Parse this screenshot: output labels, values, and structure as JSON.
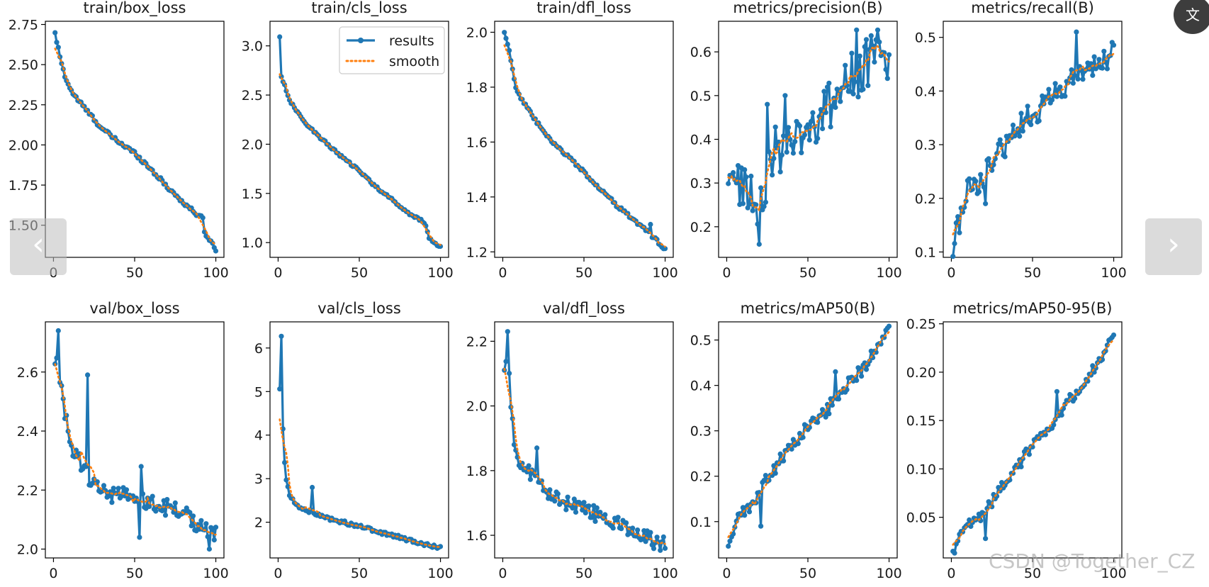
{
  "nav": {
    "prev_label": "‹",
    "next_label": "›",
    "translate_label": "文"
  },
  "watermark": "CSDN @Together_CZ",
  "colors": {
    "results": "#1f77b4",
    "smooth": "#ff7f0e"
  },
  "chart_data": [
    {
      "type": "line",
      "title": "train/box_loss",
      "xlim": [
        -5,
        105
      ],
      "ylim": [
        1.3,
        2.77
      ],
      "xticks": [
        0,
        50,
        100
      ],
      "yticks": [
        1.5,
        1.75,
        2.0,
        2.25,
        2.5,
        2.75
      ],
      "ytick_labels": [
        "1.50",
        "1.75",
        "2.00",
        "2.25",
        "2.50",
        "2.75"
      ],
      "anchors": [
        [
          1,
          2.69
        ],
        [
          3,
          2.6
        ],
        [
          5,
          2.5
        ],
        [
          8,
          2.4
        ],
        [
          12,
          2.32
        ],
        [
          20,
          2.22
        ],
        [
          30,
          2.1
        ],
        [
          40,
          2.02
        ],
        [
          50,
          1.95
        ],
        [
          60,
          1.85
        ],
        [
          70,
          1.74
        ],
        [
          80,
          1.64
        ],
        [
          88,
          1.57
        ],
        [
          92,
          1.54
        ],
        [
          93,
          1.46
        ],
        [
          96,
          1.41
        ],
        [
          100,
          1.35
        ]
      ],
      "noise": 0.012,
      "spikes": [],
      "show_legend": false
    },
    {
      "type": "line",
      "title": "train/cls_loss",
      "xlim": [
        -5,
        105
      ],
      "ylim": [
        0.85,
        3.25
      ],
      "xticks": [
        0,
        50,
        100
      ],
      "yticks": [
        1.0,
        1.5,
        2.0,
        2.5,
        3.0
      ],
      "ytick_labels": [
        "1.0",
        "1.5",
        "2.0",
        "2.5",
        "3.0"
      ],
      "anchors": [
        [
          1,
          3.1
        ],
        [
          2,
          2.68
        ],
        [
          4,
          2.6
        ],
        [
          6,
          2.5
        ],
        [
          8,
          2.42
        ],
        [
          15,
          2.25
        ],
        [
          25,
          2.08
        ],
        [
          40,
          1.86
        ],
        [
          50,
          1.73
        ],
        [
          60,
          1.57
        ],
        [
          70,
          1.44
        ],
        [
          80,
          1.3
        ],
        [
          88,
          1.23
        ],
        [
          91,
          1.17
        ],
        [
          93,
          1.05
        ],
        [
          96,
          1.0
        ],
        [
          100,
          0.96
        ]
      ],
      "noise": 0.012,
      "spikes": [],
      "show_legend": true,
      "legend": {
        "position": "top-right",
        "labels": [
          "results",
          "smooth"
        ]
      }
    },
    {
      "type": "line",
      "title": "train/dfl_loss",
      "xlim": [
        -5,
        105
      ],
      "ylim": [
        1.18,
        2.04
      ],
      "xticks": [
        0,
        50,
        100
      ],
      "yticks": [
        1.2,
        1.4,
        1.6,
        1.8,
        2.0
      ],
      "ytick_labels": [
        "1.2",
        "1.4",
        "1.6",
        "1.8",
        "2.0"
      ],
      "anchors": [
        [
          1,
          2.0
        ],
        [
          3,
          1.96
        ],
        [
          5,
          1.9
        ],
        [
          8,
          1.8
        ],
        [
          12,
          1.75
        ],
        [
          20,
          1.68
        ],
        [
          30,
          1.6
        ],
        [
          40,
          1.55
        ],
        [
          50,
          1.49
        ],
        [
          60,
          1.43
        ],
        [
          70,
          1.37
        ],
        [
          80,
          1.32
        ],
        [
          90,
          1.27
        ],
        [
          95,
          1.24
        ],
        [
          100,
          1.21
        ]
      ],
      "noise": 0.006,
      "spikes": [
        [
          91,
          1.3
        ]
      ],
      "show_legend": false
    },
    {
      "type": "line",
      "title": "metrics/precision(B)",
      "xlim": [
        -5,
        105
      ],
      "ylim": [
        0.13,
        0.67
      ],
      "xticks": [
        0,
        50,
        100
      ],
      "yticks": [
        0.2,
        0.3,
        0.4,
        0.5,
        0.6
      ],
      "ytick_labels": [
        "0.2",
        "0.3",
        "0.4",
        "0.5",
        "0.6"
      ],
      "anchors": [
        [
          1,
          0.27
        ],
        [
          5,
          0.3
        ],
        [
          10,
          0.31
        ],
        [
          15,
          0.27
        ],
        [
          19,
          0.24
        ],
        [
          25,
          0.33
        ],
        [
          30,
          0.37
        ],
        [
          40,
          0.4
        ],
        [
          50,
          0.43
        ],
        [
          60,
          0.46
        ],
        [
          70,
          0.51
        ],
        [
          80,
          0.55
        ],
        [
          90,
          0.59
        ],
        [
          95,
          0.6
        ],
        [
          100,
          0.58
        ]
      ],
      "noise": 0.06,
      "spikes": [
        [
          20,
          0.16
        ],
        [
          25,
          0.48
        ],
        [
          36,
          0.5
        ],
        [
          80,
          0.65
        ],
        [
          93,
          0.65
        ]
      ],
      "show_legend": false
    },
    {
      "type": "line",
      "title": "metrics/recall(B)",
      "xlim": [
        -5,
        105
      ],
      "ylim": [
        0.09,
        0.53
      ],
      "xticks": [
        0,
        50,
        100
      ],
      "yticks": [
        0.1,
        0.2,
        0.3,
        0.4,
        0.5
      ],
      "ytick_labels": [
        "0.1",
        "0.2",
        "0.3",
        "0.4",
        "0.5"
      ],
      "anchors": [
        [
          1,
          0.11
        ],
        [
          5,
          0.16
        ],
        [
          10,
          0.21
        ],
        [
          20,
          0.24
        ],
        [
          30,
          0.29
        ],
        [
          40,
          0.33
        ],
        [
          50,
          0.36
        ],
        [
          60,
          0.38
        ],
        [
          70,
          0.41
        ],
        [
          80,
          0.43
        ],
        [
          90,
          0.45
        ],
        [
          95,
          0.46
        ],
        [
          100,
          0.47
        ]
      ],
      "noise": 0.025,
      "spikes": [
        [
          77,
          0.51
        ],
        [
          21,
          0.19
        ]
      ],
      "show_legend": false
    },
    {
      "type": "line",
      "title": "val/box_loss",
      "xlim": [
        -5,
        105
      ],
      "ylim": [
        1.97,
        2.77
      ],
      "xticks": [
        0,
        50,
        100
      ],
      "yticks": [
        2.0,
        2.2,
        2.4,
        2.6
      ],
      "ytick_labels": [
        "2.0",
        "2.2",
        "2.4",
        "2.6"
      ],
      "anchors": [
        [
          1,
          2.64
        ],
        [
          3,
          2.6
        ],
        [
          6,
          2.48
        ],
        [
          10,
          2.36
        ],
        [
          15,
          2.3
        ],
        [
          20,
          2.27
        ],
        [
          25,
          2.22
        ],
        [
          30,
          2.2
        ],
        [
          40,
          2.18
        ],
        [
          50,
          2.16
        ],
        [
          60,
          2.15
        ],
        [
          70,
          2.14
        ],
        [
          80,
          2.12
        ],
        [
          90,
          2.09
        ],
        [
          95,
          2.07
        ],
        [
          100,
          2.04
        ]
      ],
      "noise": 0.035,
      "spikes": [
        [
          3,
          2.74
        ],
        [
          21,
          2.59
        ],
        [
          53,
          2.04
        ],
        [
          96,
          2.0
        ],
        [
          54,
          2.28
        ]
      ],
      "show_legend": false
    },
    {
      "type": "line",
      "title": "val/cls_loss",
      "xlim": [
        -5,
        105
      ],
      "ylim": [
        1.18,
        6.6
      ],
      "xticks": [
        0,
        50,
        100
      ],
      "yticks": [
        2,
        3,
        4,
        5,
        6
      ],
      "ytick_labels": [
        "2",
        "3",
        "4",
        "5",
        "6"
      ],
      "anchors": [
        [
          1,
          5.05
        ],
        [
          3,
          4.15
        ],
        [
          5,
          3.0
        ],
        [
          7,
          2.6
        ],
        [
          10,
          2.45
        ],
        [
          15,
          2.3
        ],
        [
          20,
          2.25
        ],
        [
          30,
          2.1
        ],
        [
          40,
          2.0
        ],
        [
          50,
          1.9
        ],
        [
          60,
          1.8
        ],
        [
          70,
          1.7
        ],
        [
          80,
          1.6
        ],
        [
          90,
          1.5
        ],
        [
          100,
          1.42
        ]
      ],
      "noise": 0.04,
      "spikes": [
        [
          2,
          6.27
        ],
        [
          4,
          3.37
        ],
        [
          21,
          2.8
        ]
      ],
      "show_legend": false
    },
    {
      "type": "line",
      "title": "val/dfl_loss",
      "xlim": [
        -5,
        105
      ],
      "ylim": [
        1.53,
        2.26
      ],
      "xticks": [
        0,
        50,
        100
      ],
      "yticks": [
        1.6,
        1.8,
        2.0,
        2.2
      ],
      "ytick_labels": [
        "1.6",
        "1.8",
        "2.0",
        "2.2"
      ],
      "anchors": [
        [
          1,
          2.09
        ],
        [
          3,
          2.14
        ],
        [
          5,
          2.02
        ],
        [
          7,
          1.9
        ],
        [
          10,
          1.84
        ],
        [
          15,
          1.8
        ],
        [
          20,
          1.77
        ],
        [
          30,
          1.72
        ],
        [
          40,
          1.7
        ],
        [
          50,
          1.68
        ],
        [
          60,
          1.66
        ],
        [
          70,
          1.64
        ],
        [
          80,
          1.62
        ],
        [
          90,
          1.59
        ],
        [
          100,
          1.57
        ]
      ],
      "noise": 0.025,
      "spikes": [
        [
          3,
          2.23
        ],
        [
          21,
          1.87
        ]
      ],
      "show_legend": false
    },
    {
      "type": "line",
      "title": "metrics/mAP50(B)",
      "xlim": [
        -5,
        105
      ],
      "ylim": [
        0.02,
        0.54
      ],
      "xticks": [
        0,
        50,
        100
      ],
      "yticks": [
        0.1,
        0.2,
        0.3,
        0.4,
        0.5
      ],
      "ytick_labels": [
        "0.1",
        "0.2",
        "0.3",
        "0.4",
        "0.5"
      ],
      "anchors": [
        [
          1,
          0.055
        ],
        [
          3,
          0.06
        ],
        [
          5,
          0.095
        ],
        [
          10,
          0.12
        ],
        [
          20,
          0.16
        ],
        [
          25,
          0.2
        ],
        [
          30,
          0.22
        ],
        [
          40,
          0.27
        ],
        [
          50,
          0.31
        ],
        [
          60,
          0.34
        ],
        [
          65,
          0.36
        ],
        [
          70,
          0.39
        ],
        [
          80,
          0.42
        ],
        [
          90,
          0.47
        ],
        [
          95,
          0.49
        ],
        [
          100,
          0.52
        ]
      ],
      "noise": 0.015,
      "spikes": [
        [
          21,
          0.09
        ],
        [
          67,
          0.43
        ]
      ],
      "show_legend": false
    },
    {
      "type": "line",
      "title": "metrics/mAP50-95(B)",
      "xlim": [
        -5,
        105
      ],
      "ylim": [
        0.008,
        0.252
      ],
      "xticks": [
        0,
        50,
        100
      ],
      "yticks": [
        0.05,
        0.1,
        0.15,
        0.2,
        0.25
      ],
      "ytick_labels": [
        "0.05",
        "0.10",
        "0.15",
        "0.20",
        "0.25"
      ],
      "anchors": [
        [
          1,
          0.015
        ],
        [
          5,
          0.03
        ],
        [
          10,
          0.04
        ],
        [
          20,
          0.055
        ],
        [
          30,
          0.078
        ],
        [
          40,
          0.1
        ],
        [
          50,
          0.125
        ],
        [
          60,
          0.14
        ],
        [
          70,
          0.165
        ],
        [
          80,
          0.185
        ],
        [
          90,
          0.21
        ],
        [
          100,
          0.235
        ]
      ],
      "noise": 0.006,
      "spikes": [
        [
          21,
          0.028
        ],
        [
          65,
          0.18
        ],
        [
          88,
          0.2
        ]
      ],
      "show_legend": false
    }
  ]
}
